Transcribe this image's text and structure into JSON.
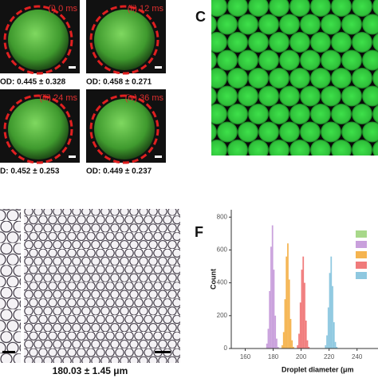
{
  "panels": [
    {
      "tag": "(i) 0 ms",
      "caption": "OD: 0.445 ± 0.328"
    },
    {
      "tag": "(ii) 12 ms",
      "caption": "OD: 0.458 ± 0.271"
    },
    {
      "tag": "(iii) 24 ms",
      "caption": "D: 0.452 ± 0.253"
    },
    {
      "tag": "(iv) 36 ms",
      "caption": "OD: 0.449 ± 0.237"
    }
  ],
  "panel_c": {
    "label": "C"
  },
  "panel_e": {
    "caption": "180.03 ± 1.45 μm"
  },
  "chart_data": {
    "type": "histogram",
    "label": "F",
    "x_label": "Droplet diameter (μm",
    "y_label": "Count",
    "xlim": [
      150,
      255
    ],
    "xticks": [
      160,
      180,
      200,
      220,
      240
    ],
    "ylim": [
      0,
      845
    ],
    "yticks": [
      0,
      200,
      400,
      600,
      800
    ],
    "series": [
      {
        "color": "#c9a0dc",
        "bins": [
          175,
          176,
          177,
          178,
          179,
          180,
          181,
          182,
          183,
          184
        ],
        "values": [
          30,
          120,
          350,
          620,
          750,
          480,
          200,
          60,
          10
        ]
      },
      {
        "color": "#f5b450",
        "bins": [
          186,
          187,
          188,
          189,
          190,
          191,
          192,
          193,
          194,
          195
        ],
        "values": [
          20,
          100,
          300,
          560,
          640,
          420,
          180,
          50,
          10
        ]
      },
      {
        "color": "#f07b7b",
        "bins": [
          197,
          198,
          199,
          200,
          201,
          202,
          203,
          204,
          205,
          206
        ],
        "values": [
          20,
          90,
          280,
          480,
          560,
          400,
          170,
          50,
          10
        ]
      },
      {
        "color": "#8ec8e0",
        "bins": [
          217,
          218,
          219,
          220,
          221,
          222,
          223,
          224,
          225,
          226
        ],
        "values": [
          20,
          80,
          250,
          460,
          560,
          380,
          160,
          40,
          10
        ]
      }
    ]
  }
}
